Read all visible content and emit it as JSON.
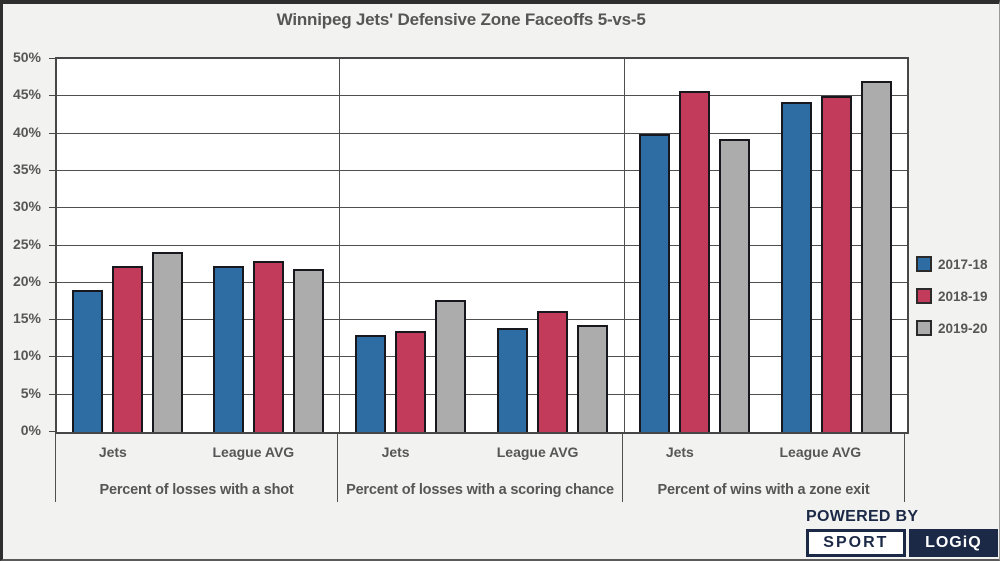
{
  "chart_data": {
    "type": "bar",
    "title": "Winnipeg Jets' Defensive Zone Faceoffs 5-vs-5",
    "xlabel": "",
    "ylabel": "",
    "ylim": [
      0,
      50
    ],
    "ytick_step": 5,
    "ytick_format": "percent",
    "yticklabels": [
      "0%",
      "5%",
      "10%",
      "15%",
      "20%",
      "25%",
      "30%",
      "35%",
      "40%",
      "45%",
      "50%"
    ],
    "grid": true,
    "legend_position": "right",
    "series": [
      {
        "name": "2017-18",
        "color": "#2E6CA4"
      },
      {
        "name": "2018-19",
        "color": "#C23B5B"
      },
      {
        "name": "2019-20",
        "color": "#ACACAC"
      }
    ],
    "groups": [
      {
        "label": "Percent of losses with a shot",
        "clusters": [
          {
            "category": "Jets",
            "values": [
              19.1,
              22.2,
              24.1
            ]
          },
          {
            "category": "League AVG",
            "values": [
              22.2,
              22.9,
              21.8
            ]
          }
        ]
      },
      {
        "label": "Percent of losses with a scoring chance",
        "clusters": [
          {
            "category": "Jets",
            "values": [
              13.0,
              13.6,
              17.7
            ]
          },
          {
            "category": "League AVG",
            "values": [
              13.9,
              16.2,
              14.3
            ]
          }
        ]
      },
      {
        "label": "Percent of wins with a zone exit",
        "clusters": [
          {
            "category": "Jets",
            "values": [
              40.0,
              45.7,
              39.3
            ]
          },
          {
            "category": "League AVG",
            "values": [
              44.2,
              45.0,
              47.0
            ]
          }
        ]
      }
    ]
  },
  "branding": {
    "powered_by": "POWERED BY",
    "logo_left": "SPORT",
    "logo_right": "LOGiQ",
    "navy": "#1B2947"
  }
}
